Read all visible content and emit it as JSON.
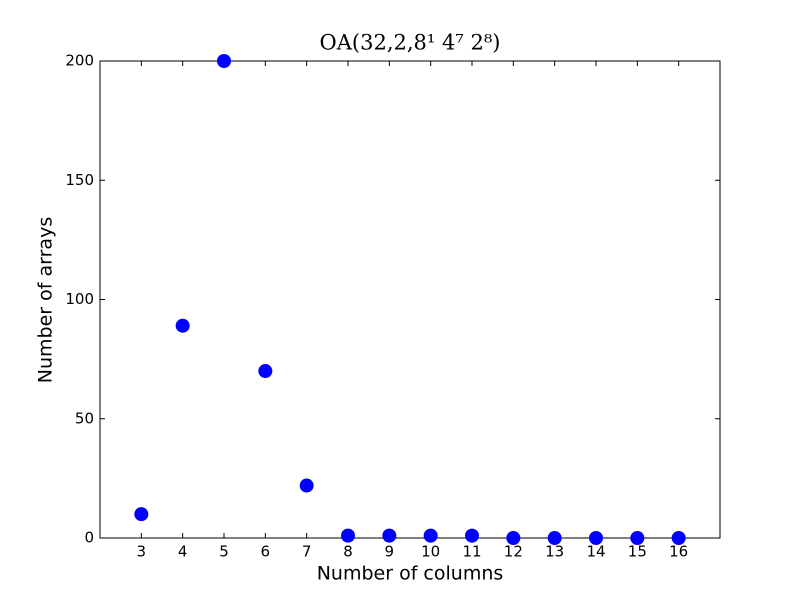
{
  "chart_data": {
    "type": "scatter",
    "title": "OA(32,2,8¹ 4⁷ 2⁸)",
    "xlabel": "Number of columns",
    "ylabel": "Number of arrays",
    "x": [
      3,
      4,
      5,
      6,
      7,
      8,
      9,
      10,
      11,
      12,
      13,
      14,
      15,
      16
    ],
    "values": [
      10,
      89,
      200,
      70,
      22,
      1,
      1,
      1,
      1,
      0,
      0,
      0,
      0,
      0
    ],
    "color": "#0000ff",
    "xlim": [
      2,
      17
    ],
    "xticks": [
      3,
      4,
      5,
      6,
      7,
      8,
      9,
      10,
      11,
      12,
      13,
      14,
      15,
      16
    ],
    "ylim": [
      0,
      200
    ],
    "yticks": [
      0,
      50,
      100,
      150,
      200
    ],
    "grid": false
  }
}
